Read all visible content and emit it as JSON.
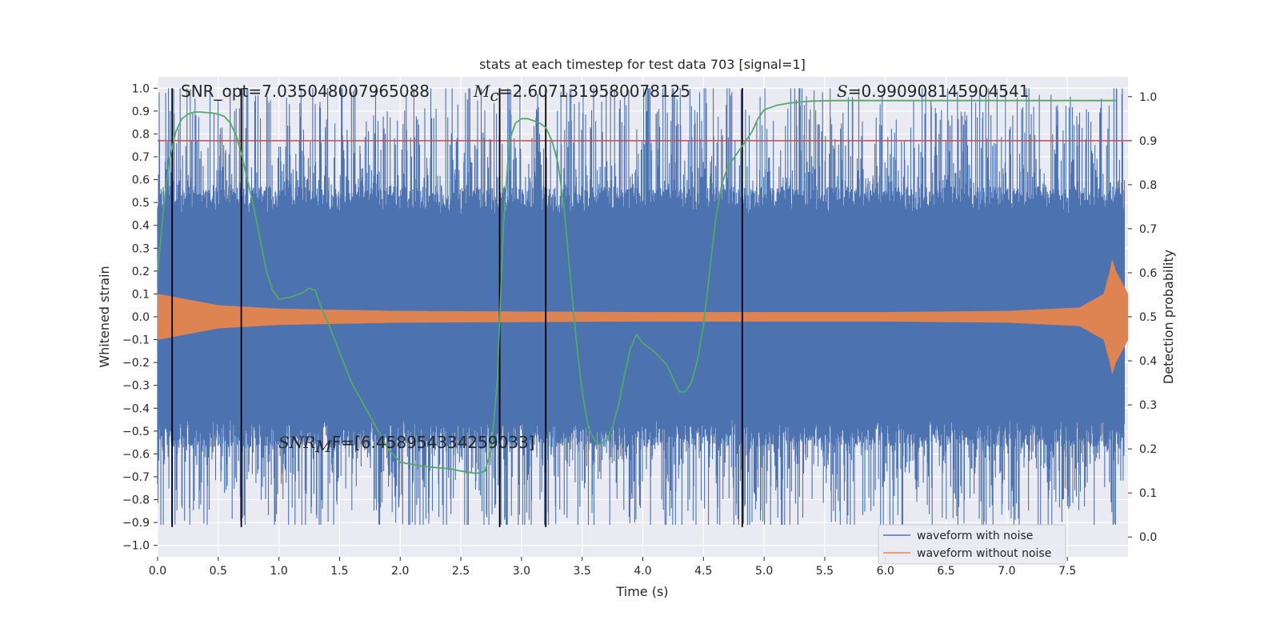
{
  "chart_data": {
    "type": "line",
    "title": "stats at each timestep for test data 703 [signal=1]",
    "xlabel": "Time (s)",
    "ylabel": "Whitened strain",
    "y2label": "Detection probability",
    "xlim": [
      0.0,
      8.0
    ],
    "ylim": [
      -1.05,
      1.05
    ],
    "y2lim": [
      -0.045,
      1.045
    ],
    "xticks": [
      "0.0",
      "0.5",
      "1.0",
      "1.5",
      "2.0",
      "2.5",
      "3.0",
      "3.5",
      "4.0",
      "4.5",
      "5.0",
      "5.5",
      "6.0",
      "6.5",
      "7.0",
      "7.5"
    ],
    "yticks": [
      "1.0",
      "0.9",
      "0.8",
      "0.7",
      "0.6",
      "0.5",
      "0.4",
      "0.3",
      "0.2",
      "0.1",
      "0.0",
      "−0.1",
      "−0.2",
      "−0.3",
      "−0.4",
      "−0.5",
      "−0.6",
      "−0.7",
      "−0.8",
      "−0.9",
      "−1.0"
    ],
    "y2ticks": [
      "1.0",
      "0.9",
      "0.8",
      "0.7",
      "0.6",
      "0.5",
      "0.4",
      "0.3",
      "0.2",
      "0.1",
      "0.0"
    ],
    "grid": true,
    "legend_position": "bottom-right",
    "colors": {
      "noise": "#4c72b0",
      "clean": "#dd8452",
      "probability": "#55a868",
      "threshold": "#c44e52",
      "markers": "#000000",
      "axes_bg": "#eaeaf2"
    },
    "series": [
      {
        "name": "waveform with noise",
        "kind": "noisy-strain",
        "band_core": 0.45,
        "peak_max": 1.0,
        "peak_min": -0.91
      },
      {
        "name": "waveform without noise",
        "kind": "chirp-envelope",
        "envelope_x": [
          0.0,
          0.5,
          1.0,
          2.0,
          4.0,
          6.0,
          7.0,
          7.6,
          7.8,
          7.85,
          7.87,
          7.9,
          8.0
        ],
        "envelope_y": [
          0.1,
          0.05,
          0.035,
          0.025,
          0.02,
          0.02,
          0.025,
          0.04,
          0.1,
          0.2,
          0.25,
          0.2,
          0.1
        ]
      },
      {
        "name": "detection probability",
        "axis": "right",
        "x": [
          0.0,
          0.05,
          0.1,
          0.15,
          0.2,
          0.25,
          0.3,
          0.35,
          0.4,
          0.45,
          0.5,
          0.55,
          0.6,
          0.65,
          0.7,
          0.75,
          0.8,
          0.85,
          0.9,
          0.95,
          1.0,
          1.1,
          1.2,
          1.25,
          1.3,
          1.35,
          1.4,
          1.5,
          1.6,
          1.7,
          1.8,
          1.9,
          2.0,
          2.2,
          2.4,
          2.5,
          2.55,
          2.6,
          2.65,
          2.7,
          2.75,
          2.8,
          2.85,
          2.9,
          2.95,
          3.0,
          3.05,
          3.1,
          3.15,
          3.2,
          3.25,
          3.3,
          3.35,
          3.4,
          3.45,
          3.5,
          3.55,
          3.6,
          3.65,
          3.7,
          3.75,
          3.8,
          3.85,
          3.9,
          3.95,
          4.0,
          4.1,
          4.2,
          4.25,
          4.3,
          4.35,
          4.4,
          4.45,
          4.5,
          4.55,
          4.6,
          4.65,
          4.7,
          4.75,
          4.8,
          4.85,
          4.9,
          4.95,
          5.0,
          5.1,
          5.2,
          5.3,
          5.4,
          5.6,
          5.8,
          6.0,
          6.5,
          7.0,
          7.5,
          7.9
        ],
        "y": [
          0.6,
          0.75,
          0.86,
          0.92,
          0.95,
          0.96,
          0.965,
          0.965,
          0.964,
          0.963,
          0.96,
          0.955,
          0.94,
          0.91,
          0.86,
          0.8,
          0.74,
          0.67,
          0.6,
          0.56,
          0.54,
          0.545,
          0.555,
          0.565,
          0.56,
          0.52,
          0.49,
          0.42,
          0.35,
          0.3,
          0.25,
          0.2,
          0.17,
          0.16,
          0.155,
          0.15,
          0.148,
          0.145,
          0.145,
          0.15,
          0.2,
          0.35,
          0.7,
          0.9,
          0.94,
          0.95,
          0.95,
          0.945,
          0.94,
          0.93,
          0.9,
          0.85,
          0.75,
          0.6,
          0.45,
          0.33,
          0.25,
          0.22,
          0.21,
          0.22,
          0.25,
          0.3,
          0.37,
          0.43,
          0.46,
          0.44,
          0.42,
          0.39,
          0.36,
          0.33,
          0.33,
          0.35,
          0.4,
          0.48,
          0.6,
          0.72,
          0.8,
          0.84,
          0.86,
          0.88,
          0.9,
          0.92,
          0.95,
          0.97,
          0.98,
          0.985,
          0.988,
          0.99,
          0.991,
          0.991,
          0.991,
          0.991,
          0.991,
          0.991,
          0.991
        ]
      }
    ],
    "threshold_line": {
      "axis": "right",
      "y": 0.9
    },
    "vertical_lines_x": [
      0.12,
      0.69,
      2.82,
      3.2,
      4.82
    ],
    "annotations": [
      {
        "id": "snr_opt",
        "text": "SNR_opt=7.035048007965088"
      },
      {
        "id": "mc",
        "prefix": "M",
        "sub": "c",
        "text": "=2.6071319580078125"
      },
      {
        "id": "s",
        "prefix": "S",
        "text": "=0.990908145904541"
      },
      {
        "id": "snr_mf",
        "prefix": "SNR",
        "sub": "M",
        "text": "F=[6.458954334259033]"
      }
    ]
  }
}
